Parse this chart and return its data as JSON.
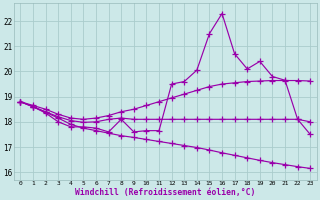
{
  "xlabel": "Windchill (Refroidissement éolien,°C)",
  "background_color": "#cce8e8",
  "grid_color": "#aacccc",
  "line_color": "#9900aa",
  "xlim": [
    -0.5,
    23.5
  ],
  "ylim": [
    15.7,
    22.7
  ],
  "yticks": [
    16,
    17,
    18,
    19,
    20,
    21,
    22
  ],
  "xticks": [
    0,
    1,
    2,
    3,
    4,
    5,
    6,
    7,
    8,
    9,
    10,
    11,
    12,
    13,
    14,
    15,
    16,
    17,
    18,
    19,
    20,
    21,
    22,
    23
  ],
  "x": [
    0,
    1,
    2,
    3,
    4,
    5,
    6,
    7,
    8,
    9,
    10,
    11,
    12,
    13,
    14,
    15,
    16,
    17,
    18,
    19,
    20,
    21,
    22,
    23
  ],
  "jagged_y": [
    18.8,
    18.6,
    18.35,
    18.0,
    17.8,
    17.8,
    17.75,
    17.6,
    18.1,
    17.6,
    17.65,
    17.65,
    19.5,
    19.6,
    20.05,
    21.5,
    22.3,
    20.7,
    20.1,
    20.4,
    19.8,
    19.65,
    18.1,
    17.5
  ],
  "upper_y": [
    18.8,
    18.65,
    18.5,
    18.3,
    18.15,
    18.1,
    18.15,
    18.25,
    18.4,
    18.5,
    18.65,
    18.8,
    18.95,
    19.1,
    19.25,
    19.4,
    19.5,
    19.55,
    19.6,
    19.62,
    19.64,
    19.64,
    19.64,
    19.62
  ],
  "mid_y": [
    18.8,
    18.6,
    18.4,
    18.2,
    18.05,
    17.98,
    18.0,
    18.1,
    18.15,
    18.1,
    18.1,
    18.1,
    18.1,
    18.1,
    18.1,
    18.1,
    18.1,
    18.1,
    18.1,
    18.1,
    18.1,
    18.1,
    18.1,
    18.0
  ],
  "lower_y": [
    18.8,
    18.6,
    18.38,
    18.15,
    17.9,
    17.75,
    17.65,
    17.55,
    17.45,
    17.38,
    17.3,
    17.22,
    17.14,
    17.06,
    16.98,
    16.88,
    16.77,
    16.67,
    16.57,
    16.47,
    16.38,
    16.3,
    16.22,
    16.15
  ],
  "figsize": [
    3.2,
    2.0
  ],
  "dpi": 100
}
